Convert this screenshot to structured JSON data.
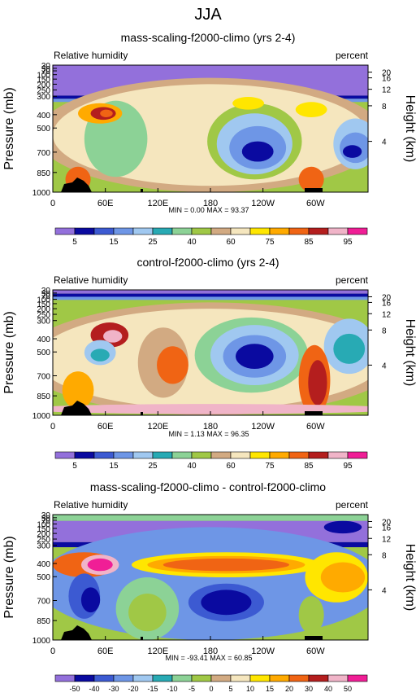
{
  "page_title": "JJA",
  "chart_data": [
    {
      "type": "heatmap",
      "title": "mass-scaling-f2000-climo (yrs 2-4)",
      "left_label": "Relative humidity",
      "right_label": "percent",
      "ylabel": "Pressure (mb)",
      "ylabel_right": "Height (km)",
      "pressure_ticks": [
        "30",
        "50",
        "70",
        "100",
        "150",
        "200",
        "250",
        "300",
        "400",
        "500",
        "700",
        "850",
        "1000"
      ],
      "height_ticks": [
        "20",
        "16",
        "12",
        "8",
        "4"
      ],
      "x_ticks": [
        "0",
        "60E",
        "120E",
        "180",
        "120W",
        "60W"
      ],
      "stats": "MIN =   0.00  MAX =  93.37",
      "colorbar_labels": [
        "5",
        "15",
        "25",
        "40",
        "60",
        "75",
        "85",
        "95"
      ],
      "colorbar_colors": [
        "#9370db",
        "#0a0aa0",
        "#3c5ad2",
        "#6e96e6",
        "#a0c8f0",
        "#28aab4",
        "#8cd296",
        "#a0c846",
        "#d2aa82",
        "#f5e6be",
        "#ffe600",
        "#ffaa00",
        "#f06414",
        "#b41e1e",
        "#f0b4c8",
        "#f01e96"
      ]
    },
    {
      "type": "heatmap",
      "title": "control-f2000-climo (yrs 2-4)",
      "left_label": "Relative humidity",
      "right_label": "percent",
      "ylabel": "Pressure (mb)",
      "ylabel_right": "Height (km)",
      "pressure_ticks": [
        "30",
        "50",
        "70",
        "100",
        "150",
        "200",
        "250",
        "300",
        "400",
        "500",
        "700",
        "850",
        "1000"
      ],
      "height_ticks": [
        "20",
        "16",
        "12",
        "8",
        "4"
      ],
      "x_ticks": [
        "0",
        "60E",
        "120E",
        "180",
        "120W",
        "60W"
      ],
      "stats": "MIN =   1.13  MAX =  96.35",
      "colorbar_labels": [
        "5",
        "15",
        "25",
        "40",
        "60",
        "75",
        "85",
        "95"
      ],
      "colorbar_colors": [
        "#9370db",
        "#0a0aa0",
        "#3c5ad2",
        "#6e96e6",
        "#a0c8f0",
        "#28aab4",
        "#8cd296",
        "#a0c846",
        "#d2aa82",
        "#f5e6be",
        "#ffe600",
        "#ffaa00",
        "#f06414",
        "#b41e1e",
        "#f0b4c8",
        "#f01e96"
      ]
    },
    {
      "type": "heatmap",
      "title": "mass-scaling-f2000-climo - control-f2000-climo",
      "left_label": "Relative humidity",
      "right_label": "percent",
      "ylabel": "Pressure (mb)",
      "ylabel_right": "Height (km)",
      "pressure_ticks": [
        "30",
        "50",
        "70",
        "100",
        "150",
        "200",
        "250",
        "300",
        "400",
        "500",
        "700",
        "850",
        "1000"
      ],
      "height_ticks": [
        "20",
        "16",
        "12",
        "8",
        "4"
      ],
      "x_ticks": [
        "0",
        "60E",
        "120E",
        "180",
        "120W",
        "60W"
      ],
      "stats": "MIN = -93.41  MAX =  60.85",
      "colorbar_labels": [
        "-50",
        "-40",
        "-30",
        "-20",
        "-15",
        "-10",
        "-5",
        "0",
        "5",
        "10",
        "15",
        "20",
        "30",
        "40",
        "50"
      ],
      "colorbar_colors": [
        "#9370db",
        "#0a0aa0",
        "#3c5ad2",
        "#6e96e6",
        "#a0c8f0",
        "#28aab4",
        "#8cd296",
        "#a0c846",
        "#d2aa82",
        "#f5e6be",
        "#ffe600",
        "#ffaa00",
        "#f06414",
        "#b41e1e",
        "#f0b4c8",
        "#f01e96"
      ]
    }
  ]
}
